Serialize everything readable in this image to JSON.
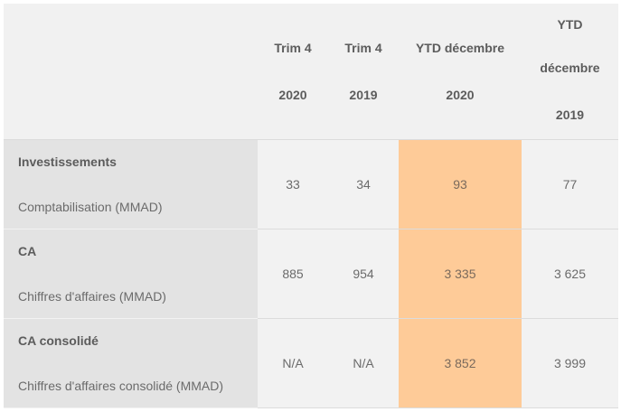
{
  "header": {
    "col1": {
      "line1": "Trim 4",
      "line2": "2020"
    },
    "col2": {
      "line1": "Trim 4",
      "line2": "2019"
    },
    "col3": {
      "line1": "YTD décembre",
      "line2": "2020"
    },
    "col4": {
      "line1": "YTD",
      "line2": "décembre",
      "line3": "2019"
    }
  },
  "rows": [
    {
      "title": "Investissements",
      "subtitle": "Comptabilisation (MMAD)",
      "values": [
        "33",
        "34",
        "93",
        "77"
      ]
    },
    {
      "title": "CA",
      "subtitle": "Chiffres d'affaires (MMAD)",
      "values": [
        "885",
        "954",
        "3 335",
        "3 625"
      ]
    },
    {
      "title": "CA consolidé",
      "subtitle": "Chiffres d'affaires consolidé (MMAD)",
      "values": [
        "N/A",
        "N/A",
        "3 852",
        "3 999"
      ]
    }
  ],
  "colors": {
    "highlight_column": "#fecb98",
    "label_column": "#e3e3e3",
    "cell_background": "#f2f2f2"
  }
}
